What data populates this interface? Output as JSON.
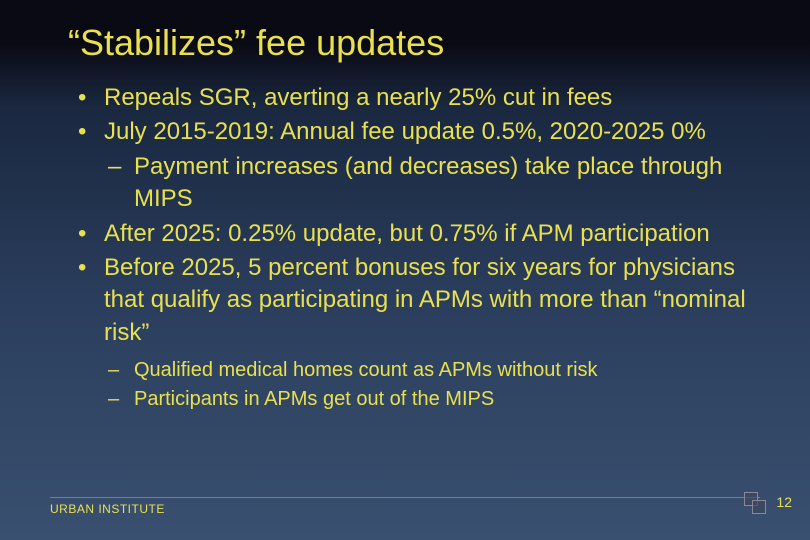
{
  "title": "“Stabilizes” fee updates",
  "bullets": [
    {
      "marker": "•",
      "text": "Repeals SGR, averting a nearly 25% cut in fees"
    },
    {
      "marker": "•",
      "text": "July 2015-2019: Annual fee update 0.5%, 2020-2025 0%"
    }
  ],
  "sub1": [
    {
      "marker": "–",
      "text": "Payment increases (and decreases) take place through MIPS"
    }
  ],
  "bullets2": [
    {
      "marker": "•",
      "text": "After 2025: 0.25% update, but 0.75% if APM participation"
    },
    {
      "marker": "•",
      "text": "Before 2025, 5 percent bonuses for six years for physicians that qualify as participating in APMs with more than “nominal risk”"
    }
  ],
  "sub2": [
    {
      "marker": "–",
      "text": "Qualified medical homes count as APMs without risk"
    },
    {
      "marker": "–",
      "text": "Participants in APMs get out of the MIPS"
    }
  ],
  "footer": "URBAN INSTITUTE",
  "page_number": "12",
  "colors": {
    "text": "#e8e050",
    "bg_top": "#0a0a14",
    "bg_bottom": "#3a5070"
  }
}
